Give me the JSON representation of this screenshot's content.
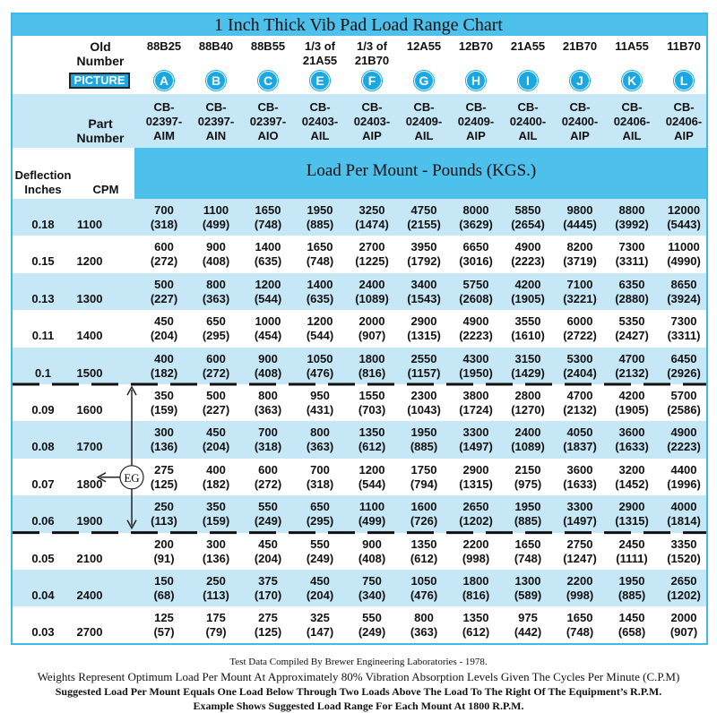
{
  "title": "1 Inch Thick Vib Pad Load Range Chart",
  "header": {
    "old_number_label": "Old\nNumber",
    "picture_label": "PICTURE",
    "part_number_label": "Part\nNumber",
    "deflection_label": "Deflection\nInches",
    "cpm_label": "CPM",
    "load_label": "Load Per Mount - Pounds (KGS.)"
  },
  "columns": [
    {
      "old": "88B25",
      "letter": "A",
      "part": "CB-\n02397-\nAIM"
    },
    {
      "old": "88B40",
      "letter": "B",
      "part": "CB-\n02397-\nAIN"
    },
    {
      "old": "88B55",
      "letter": "C",
      "part": "CB-\n02397-\nAIO"
    },
    {
      "old": "1/3 of\n21A55",
      "letter": "E",
      "part": "CB-\n02403-\nAIL"
    },
    {
      "old": "1/3 of\n21B70",
      "letter": "F",
      "part": "CB-\n02403-\nAIP"
    },
    {
      "old": "12A55",
      "letter": "G",
      "part": "CB-\n02409-\nAIL"
    },
    {
      "old": "12B70",
      "letter": "H",
      "part": "CB-\n02409-\nAIP"
    },
    {
      "old": "21A55",
      "letter": "I",
      "part": "CB-\n02400-\nAIL"
    },
    {
      "old": "21B70",
      "letter": "J",
      "part": "CB-\n02400-\nAIP"
    },
    {
      "old": "11A55",
      "letter": "K",
      "part": "CB-\n02406-\nAIL"
    },
    {
      "old": "11B70",
      "letter": "L",
      "part": "CB-\n02406-\nAIP"
    }
  ],
  "rows": [
    {
      "deflection": "0.18",
      "cpm": "1100",
      "loads": [
        [
          "700",
          "(318)"
        ],
        [
          "1100",
          "(499)"
        ],
        [
          "1650",
          "(748)"
        ],
        [
          "1950",
          "(885)"
        ],
        [
          "3250",
          "(1474)"
        ],
        [
          "4750",
          "(2155)"
        ],
        [
          "8000",
          "(3629)"
        ],
        [
          "5850",
          "(2654)"
        ],
        [
          "9800",
          "(4445)"
        ],
        [
          "8800",
          "(3992)"
        ],
        [
          "12000",
          "(5443)"
        ]
      ]
    },
    {
      "deflection": "0.15",
      "cpm": "1200",
      "loads": [
        [
          "600",
          "(272)"
        ],
        [
          "900",
          "(408)"
        ],
        [
          "1400",
          "(635)"
        ],
        [
          "1650",
          "(748)"
        ],
        [
          "2700",
          "(1225)"
        ],
        [
          "3950",
          "(1792)"
        ],
        [
          "6650",
          "(3016)"
        ],
        [
          "4900",
          "(2223)"
        ],
        [
          "8200",
          "(3719)"
        ],
        [
          "7300",
          "(3311)"
        ],
        [
          "11000",
          "(4990)"
        ]
      ]
    },
    {
      "deflection": "0.13",
      "cpm": "1300",
      "loads": [
        [
          "500",
          "(227)"
        ],
        [
          "800",
          "(363)"
        ],
        [
          "1200",
          "(544)"
        ],
        [
          "1400",
          "(635)"
        ],
        [
          "2400",
          "(1089)"
        ],
        [
          "3400",
          "(1543)"
        ],
        [
          "5750",
          "(2608)"
        ],
        [
          "4200",
          "(1905)"
        ],
        [
          "7100",
          "(3221)"
        ],
        [
          "6350",
          "(2880)"
        ],
        [
          "8650",
          "(3924)"
        ]
      ]
    },
    {
      "deflection": "0.11",
      "cpm": "1400",
      "loads": [
        [
          "450",
          "(204)"
        ],
        [
          "650",
          "(295)"
        ],
        [
          "1000",
          "(454)"
        ],
        [
          "1200",
          "(544)"
        ],
        [
          "2000",
          "(907)"
        ],
        [
          "2900",
          "(1315)"
        ],
        [
          "4900",
          "(2223)"
        ],
        [
          "3550",
          "(1610)"
        ],
        [
          "6000",
          "(2722)"
        ],
        [
          "5350",
          "(2427)"
        ],
        [
          "7300",
          "(3311)"
        ]
      ]
    },
    {
      "deflection": "0.1",
      "cpm": "1500",
      "loads": [
        [
          "400",
          "(182)"
        ],
        [
          "600",
          "(272)"
        ],
        [
          "900",
          "(408)"
        ],
        [
          "1050",
          "(476)"
        ],
        [
          "1800",
          "(816)"
        ],
        [
          "2550",
          "(1157)"
        ],
        [
          "4300",
          "(1950)"
        ],
        [
          "3150",
          "(1429)"
        ],
        [
          "5300",
          "(2404)"
        ],
        [
          "4700",
          "(2132)"
        ],
        [
          "6450",
          "(2926)"
        ]
      ]
    },
    {
      "deflection": "0.09",
      "cpm": "1600",
      "loads": [
        [
          "350",
          "(159)"
        ],
        [
          "500",
          "(227)"
        ],
        [
          "800",
          "(363)"
        ],
        [
          "950",
          "(431)"
        ],
        [
          "1550",
          "(703)"
        ],
        [
          "2300",
          "(1043)"
        ],
        [
          "3800",
          "(1724)"
        ],
        [
          "2800",
          "(1270)"
        ],
        [
          "4700",
          "(2132)"
        ],
        [
          "4200",
          "(1905)"
        ],
        [
          "5700",
          "(2586)"
        ]
      ]
    },
    {
      "deflection": "0.08",
      "cpm": "1700",
      "loads": [
        [
          "300",
          "(136)"
        ],
        [
          "450",
          "(204)"
        ],
        [
          "700",
          "(318)"
        ],
        [
          "800",
          "(363)"
        ],
        [
          "1350",
          "(612)"
        ],
        [
          "1950",
          "(885)"
        ],
        [
          "3300",
          "(1497)"
        ],
        [
          "2400",
          "(1089)"
        ],
        [
          "4050",
          "(1837)"
        ],
        [
          "3600",
          "(1633)"
        ],
        [
          "4900",
          "(2223)"
        ]
      ]
    },
    {
      "deflection": "0.07",
      "cpm": "1800",
      "loads": [
        [
          "275",
          "(125)"
        ],
        [
          "400",
          "(182)"
        ],
        [
          "600",
          "(272)"
        ],
        [
          "700",
          "(318)"
        ],
        [
          "1200",
          "(544)"
        ],
        [
          "1750",
          "(794)"
        ],
        [
          "2900",
          "(1315)"
        ],
        [
          "2150",
          "(975)"
        ],
        [
          "3600",
          "(1633)"
        ],
        [
          "3200",
          "(1452)"
        ],
        [
          "4400",
          "(1996)"
        ]
      ]
    },
    {
      "deflection": "0.06",
      "cpm": "1900",
      "loads": [
        [
          "250",
          "(113)"
        ],
        [
          "350",
          "(159)"
        ],
        [
          "550",
          "(249)"
        ],
        [
          "650",
          "(295)"
        ],
        [
          "1100",
          "(499)"
        ],
        [
          "1600",
          "(726)"
        ],
        [
          "2650",
          "(1202)"
        ],
        [
          "1950",
          "(885)"
        ],
        [
          "3300",
          "(1497)"
        ],
        [
          "2900",
          "(1315)"
        ],
        [
          "4000",
          "(1814)"
        ]
      ]
    },
    {
      "deflection": "0.05",
      "cpm": "2100",
      "loads": [
        [
          "200",
          "(91)"
        ],
        [
          "300",
          "(136)"
        ],
        [
          "450",
          "(204)"
        ],
        [
          "550",
          "(249)"
        ],
        [
          "900",
          "(408)"
        ],
        [
          "1350",
          "(612)"
        ],
        [
          "2200",
          "(998)"
        ],
        [
          "1650",
          "(748)"
        ],
        [
          "2750",
          "(1247)"
        ],
        [
          "2450",
          "(1111)"
        ],
        [
          "3350",
          "(1520)"
        ]
      ]
    },
    {
      "deflection": "0.04",
      "cpm": "2400",
      "loads": [
        [
          "150",
          "(68)"
        ],
        [
          "250",
          "(113)"
        ],
        [
          "375",
          "(170)"
        ],
        [
          "450",
          "(204)"
        ],
        [
          "750",
          "(340)"
        ],
        [
          "1050",
          "(476)"
        ],
        [
          "1800",
          "(816)"
        ],
        [
          "1300",
          "(589)"
        ],
        [
          "2200",
          "(998)"
        ],
        [
          "1950",
          "(885)"
        ],
        [
          "2650",
          "(1202)"
        ]
      ]
    },
    {
      "deflection": "0.03",
      "cpm": "2700",
      "loads": [
        [
          "125",
          "(57)"
        ],
        [
          "175",
          "(79)"
        ],
        [
          "275",
          "(125)"
        ],
        [
          "325",
          "(147)"
        ],
        [
          "550",
          "(249)"
        ],
        [
          "800",
          "(363)"
        ],
        [
          "1350",
          "(612)"
        ],
        [
          "975",
          "(442)"
        ],
        [
          "1650",
          "(748)"
        ],
        [
          "1450",
          "(658)"
        ],
        [
          "2000",
          "(907)"
        ]
      ]
    }
  ],
  "example_label": "EG",
  "footer": [
    "Test Data Compiled By Brewer Engineering Laboratories - 1978.",
    "Weights Represent Optimum Load Per Mount At Approximately 80% Vibration Absorption Levels Given The Cycles Per Minute (C.P.M)",
    "Suggested Load Per Mount Equals One Load Below Through Two Loads Above The Load To The Right Of The Equipment’s R.P.M.",
    "Example Shows Suggested Load Range For Each Mount At 1800 R.P.M."
  ]
}
